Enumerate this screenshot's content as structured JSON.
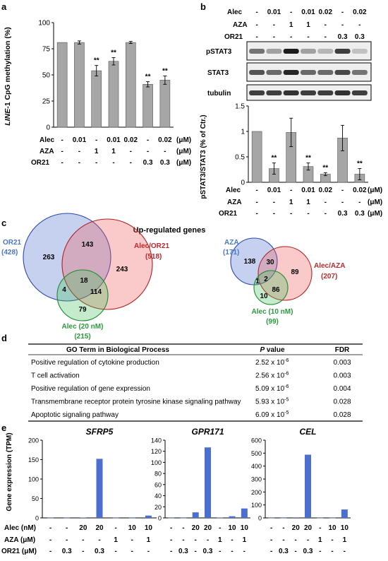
{
  "panels": {
    "a": "a",
    "b": "b",
    "c": "c",
    "d": "d",
    "e": "e"
  },
  "treat_labels": {
    "alec": "Alec",
    "aza": "AZA",
    "or21": "OR21",
    "unit": "(μM)"
  },
  "treat_labels_e": {
    "alec": "Alec (nM)",
    "aza": "AZA (μM)",
    "or21": "OR21 (μM)"
  },
  "panel_a": {
    "ylabel_italic": "LINE",
    "ylabel_rest": "-1 CpG methylation (%)",
    "rows": {
      "alec": [
        "-",
        "0.01",
        "-",
        "0.01",
        "0.02",
        "-",
        "0.02"
      ],
      "aza": [
        "-",
        "-",
        "1",
        "1",
        "-",
        "-",
        "-"
      ],
      "or21": [
        "-",
        "-",
        "-",
        "-",
        "-",
        "0.3",
        "0.3"
      ]
    },
    "sig": [
      "",
      "",
      "**",
      "**",
      "",
      "**",
      "**"
    ]
  },
  "panel_b": {
    "top_rows": {
      "alec": [
        "-",
        "0.01",
        "-",
        "0.01",
        "0.02",
        "-",
        "0.02"
      ],
      "aza": [
        "-",
        "-",
        "1",
        "1",
        "-",
        "-",
        "-"
      ],
      "or21": [
        "-",
        "-",
        "-",
        "-",
        "-",
        "0.3",
        "0.3"
      ]
    },
    "blots": [
      "pSTAT3",
      "STAT3",
      "tubulin"
    ],
    "ylabel": "pSTAT3/STAT3 (% of Ctr.)",
    "sig": [
      "",
      "**",
      "",
      "**",
      "**",
      "",
      "**"
    ]
  },
  "panel_c": {
    "title": "Up-regulated genes",
    "left": {
      "or21_label": "OR21",
      "or21_n": "(428)",
      "alec_or21_label": "Alec/OR21",
      "alec_or21_n": "(518)",
      "alec20_label": "Alec (20 nM)",
      "alec20_n": "(215)",
      "n_or21_only": "263",
      "n_or21_alecor21": "143",
      "n_alecor21_only": "243",
      "n_center": "18",
      "n_or21_alec20": "4",
      "n_alecor21_alec20": "114",
      "n_alec20_only": "79"
    },
    "right": {
      "aza_label": "AZA",
      "aza_n": "(171)",
      "alec_aza_label": "Alec/AZA",
      "alec_aza_n": "(207)",
      "alec10_label": "Alec (10 nM)",
      "alec10_n": "(99)",
      "n_aza_only": "138",
      "n_aza_alecaza": "30",
      "n_alecaza_only": "89",
      "n_center": "2",
      "n_aza_alec10": "1",
      "n_alecaza_alec10": "86",
      "n_alec10_only": "10"
    }
  },
  "panel_d": {
    "headers": {
      "term": "GO Term in Biological Process",
      "p_italic": "P",
      "p_rest": " value",
      "fdr": "FDR"
    },
    "rows": [
      {
        "term": "Positive regulation of cytokine production",
        "p": "2.52 x 10",
        "exp": "-6",
        "fdr": "0.003"
      },
      {
        "term": "T cell activation",
        "p": "2.56 x 10",
        "exp": "-6",
        "fdr": "0.003"
      },
      {
        "term": "Positive regulation of gene expression",
        "p": "5.09 x 10",
        "exp": "-6",
        "fdr": "0.004"
      },
      {
        "term": "Transmembrane receptor protein tyrosine kinase signaling pathway",
        "p": "5.93 x 10",
        "exp": "-5",
        "fdr": "0.028"
      },
      {
        "term": "Apoptotic signaling pathway",
        "p": "6.09 x 10",
        "exp": "-5",
        "fdr": "0.028"
      }
    ]
  },
  "panel_e": {
    "ylabel": "Gene expression (TPM)",
    "rows": {
      "alec": [
        "-",
        "-",
        "20",
        "20",
        "-",
        "10",
        "10"
      ],
      "aza": [
        "-",
        "-",
        "-",
        "-",
        "1",
        "-",
        "1"
      ],
      "or21": [
        "-",
        "0.3",
        "-",
        "0.3",
        "-",
        "-",
        "-"
      ]
    }
  },
  "chart_data": [
    {
      "type": "bar",
      "panel": "a",
      "ylabel": "LINE-1 CpG methylation (%)",
      "categories": [
        "1",
        "2",
        "3",
        "4",
        "5",
        "6",
        "7"
      ],
      "values": [
        81,
        81,
        54,
        63,
        81,
        41,
        45
      ],
      "errors": [
        0,
        1.5,
        5,
        3.5,
        1,
        2.5,
        4
      ],
      "ylim": [
        0,
        100
      ],
      "yticks": [
        0,
        25,
        50,
        75,
        100
      ],
      "ytick_labels": [
        "0",
        "25",
        "50",
        "75",
        "100"
      ],
      "color": "#a6a6a6"
    },
    {
      "type": "bar",
      "panel": "b",
      "ylabel": "pSTAT3/STAT3 (% of Ctr.)",
      "categories": [
        "1",
        "2",
        "3",
        "4",
        "5",
        "6",
        "7"
      ],
      "values": [
        1,
        0.27,
        0.98,
        0.31,
        0.16,
        0.87,
        0.16
      ],
      "errors": [
        0,
        0.11,
        0.28,
        0.07,
        0.03,
        0.25,
        0.11
      ],
      "ylim": [
        0,
        1.5
      ],
      "yticks": [
        0,
        0.5,
        1,
        1.5
      ],
      "ytick_labels": [
        "0",
        "0.5",
        "1",
        "1.5"
      ],
      "color": "#a6a6a6"
    },
    {
      "type": "bar",
      "panel": "e",
      "title": "SFRP5",
      "categories": [
        "1",
        "2",
        "3",
        "4",
        "5",
        "6",
        "7"
      ],
      "values": [
        0.5,
        0.5,
        1,
        152,
        0.5,
        0.5,
        6
      ],
      "ylim": [
        0,
        200
      ],
      "yticks": [
        0,
        50,
        100,
        150,
        200
      ],
      "ytick_labels": [
        "0",
        "50",
        "100",
        "150",
        "200"
      ],
      "color": "#4a6fcf"
    },
    {
      "type": "bar",
      "panel": "e",
      "title": "GPR171",
      "categories": [
        "1",
        "2",
        "3",
        "4",
        "5",
        "6",
        "7"
      ],
      "values": [
        0.3,
        0.3,
        10,
        127,
        0.5,
        3,
        17
      ],
      "ylim": [
        0,
        140
      ],
      "yticks": [
        0,
        20,
        40,
        60,
        80,
        100,
        120,
        140
      ],
      "ytick_labels": [
        "0",
        "20",
        "40",
        "60",
        "80",
        "100",
        "120",
        "140"
      ],
      "color": "#4a6fcf"
    },
    {
      "type": "bar",
      "panel": "e",
      "title": "CEL",
      "categories": [
        "1",
        "2",
        "3",
        "4",
        "5",
        "6",
        "7"
      ],
      "values": [
        1,
        1,
        4,
        488,
        1,
        1,
        65
      ],
      "ylim": [
        0,
        600
      ],
      "yticks": [
        0,
        100,
        200,
        300,
        400,
        500,
        600
      ],
      "ytick_labels": [
        "0",
        "100",
        "200",
        "300",
        "400",
        "500",
        "600"
      ],
      "color": "#4a6fcf"
    }
  ]
}
